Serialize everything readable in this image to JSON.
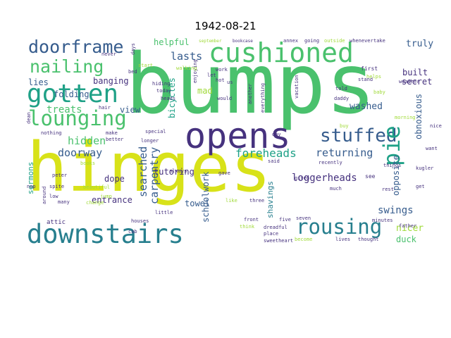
{
  "title": "1942-08-21",
  "colors": {
    "yellow": "#d8e219",
    "lime": "#a0da39",
    "green": "#4ac16d",
    "teal_green": "#1fa187",
    "teal": "#277f8e",
    "blue": "#365c8d",
    "indigo": "#46327e",
    "purple": "#440154"
  },
  "words": [
    {
      "text": "hinges",
      "color": "#d8e219"
    },
    {
      "text": "bumps",
      "color": "#4ac16d"
    },
    {
      "text": "opens",
      "color": "#46327e"
    },
    {
      "text": "cushioned",
      "color": "#4ac16d"
    },
    {
      "text": "gotten",
      "color": "#1fa187"
    },
    {
      "text": "downstairs",
      "color": "#277f8e"
    },
    {
      "text": "lounging",
      "color": "#4ac16d"
    },
    {
      "text": "doorframe",
      "color": "#365c8d"
    },
    {
      "text": "nailing",
      "color": "#4ac16d"
    },
    {
      "text": "rousing",
      "color": "#277f8e"
    },
    {
      "text": "stuffed",
      "color": "#365c8d"
    },
    {
      "text": "pie",
      "color": "#1fa187"
    },
    {
      "text": "foreheads",
      "color": "#1fa187"
    },
    {
      "text": "returning",
      "color": "#365c8d"
    },
    {
      "text": "hidden",
      "color": "#4ac16d"
    },
    {
      "text": "doorway",
      "color": "#365c8d"
    },
    {
      "text": "lasts",
      "color": "#365c8d"
    },
    {
      "text": "treats",
      "color": "#4ac16d"
    },
    {
      "text": "searched",
      "color": "#365c8d"
    },
    {
      "text": "carpentry",
      "color": "#365c8d"
    },
    {
      "text": "loggerheads",
      "color": "#46327e"
    },
    {
      "text": "swings",
      "color": "#365c8d"
    },
    {
      "text": "entrance",
      "color": "#46327e"
    },
    {
      "text": "tutoring",
      "color": "#46327e"
    },
    {
      "text": "dope",
      "color": "#46327e"
    },
    {
      "text": "towel",
      "color": "#365c8d"
    },
    {
      "text": "washed",
      "color": "#365c8d"
    },
    {
      "text": "secret",
      "color": "#46327e"
    },
    {
      "text": "built",
      "color": "#46327e"
    },
    {
      "text": "truly",
      "color": "#365c8d"
    },
    {
      "text": "opposite",
      "color": "#365c8d"
    },
    {
      "text": "obnoxious",
      "color": "#365c8d"
    },
    {
      "text": "nicer",
      "color": "#a0da39"
    },
    {
      "text": "duck",
      "color": "#4ac16d"
    },
    {
      "text": "helpful",
      "color": "#4ac16d"
    },
    {
      "text": "folding",
      "color": "#365c8d"
    },
    {
      "text": "lies",
      "color": "#365c8d"
    },
    {
      "text": "banging",
      "color": "#46327e"
    },
    {
      "text": "view",
      "color": "#365c8d"
    },
    {
      "text": "mad",
      "color": "#a0da39"
    },
    {
      "text": "bicycles",
      "color": "#1fa187"
    },
    {
      "text": "schoolwork",
      "color": "#365c8d"
    },
    {
      "text": "shavings",
      "color": "#277f8e"
    },
    {
      "text": "sermons",
      "color": "#1fa187"
    },
    {
      "text": "attic",
      "color": "#46327e"
    },
    {
      "text": "lives",
      "color": "#46327e"
    },
    {
      "text": "thought",
      "color": "#46327e"
    },
    {
      "text": "become",
      "color": "#a0da39"
    },
    {
      "text": "sweetheart",
      "color": "#46327e"
    },
    {
      "text": "dreadful",
      "color": "#46327e"
    },
    {
      "text": "place",
      "color": "#46327e"
    },
    {
      "text": "front",
      "color": "#46327e"
    },
    {
      "text": "think",
      "color": "#a0da39"
    },
    {
      "text": "five",
      "color": "#46327e"
    },
    {
      "text": "seven",
      "color": "#46327e"
    },
    {
      "text": "minutes",
      "color": "#46327e"
    },
    {
      "text": "father",
      "color": "#46327e"
    },
    {
      "text": "houses",
      "color": "#46327e"
    },
    {
      "text": "little",
      "color": "#46327e"
    },
    {
      "text": "always",
      "color": "#46327e"
    },
    {
      "text": "gave",
      "color": "#46327e"
    },
    {
      "text": "said",
      "color": "#46327e"
    },
    {
      "text": "recently",
      "color": "#46327e"
    },
    {
      "text": "given",
      "color": "#46327e"
    },
    {
      "text": "see",
      "color": "#46327e"
    },
    {
      "text": "much",
      "color": "#46327e"
    },
    {
      "text": "rest",
      "color": "#46327e"
    },
    {
      "text": "get",
      "color": "#46327e"
    },
    {
      "text": "want",
      "color": "#46327e"
    },
    {
      "text": "kugler",
      "color": "#46327e"
    },
    {
      "text": "things",
      "color": "#46327e"
    },
    {
      "text": "special",
      "color": "#46327e"
    },
    {
      "text": "longer",
      "color": "#46327e"
    },
    {
      "text": "better",
      "color": "#46327e"
    },
    {
      "text": "make",
      "color": "#46327e"
    },
    {
      "text": "nothing",
      "color": "#46327e"
    },
    {
      "text": "books",
      "color": "#a0da39"
    },
    {
      "text": "peter",
      "color": "#46327e"
    },
    {
      "text": "spite",
      "color": "#46327e"
    },
    {
      "text": "nap",
      "color": "#46327e"
    },
    {
      "text": "low",
      "color": "#46327e"
    },
    {
      "text": "many",
      "color": "#46327e"
    },
    {
      "text": "around",
      "color": "#46327e"
    },
    {
      "text": "beautiful",
      "color": "#a0da39"
    },
    {
      "text": "jump",
      "color": "#a0da39"
    },
    {
      "text": "change",
      "color": "#a0da39"
    },
    {
      "text": "three",
      "color": "#46327e"
    },
    {
      "text": "september",
      "color": "#a0da39"
    },
    {
      "text": "bookcase",
      "color": "#46327e"
    },
    {
      "text": "annex",
      "color": "#46327e"
    },
    {
      "text": "going",
      "color": "#46327e"
    },
    {
      "text": "outside",
      "color": "#a0da39"
    },
    {
      "text": "whenever",
      "color": "#46327e"
    },
    {
      "text": "take",
      "color": "#46327e"
    },
    {
      "text": "first",
      "color": "#46327e"
    },
    {
      "text": "stand",
      "color": "#46327e"
    },
    {
      "text": "weather",
      "color": "#46327e"
    },
    {
      "text": "helps",
      "color": "#a0da39"
    },
    {
      "text": "told",
      "color": "#46327e"
    },
    {
      "text": "daddy",
      "color": "#46327e"
    },
    {
      "text": "baby",
      "color": "#a0da39"
    },
    {
      "text": "buy",
      "color": "#a0da39"
    },
    {
      "text": "morning",
      "color": "#a0da39"
    },
    {
      "text": "nice",
      "color": "#46327e"
    },
    {
      "text": "day",
      "color": "#46327e"
    },
    {
      "text": "hot",
      "color": "#46327e"
    },
    {
      "text": "us",
      "color": "#46327e"
    },
    {
      "text": "let",
      "color": "#46327e"
    },
    {
      "text": "work",
      "color": "#46327e"
    },
    {
      "text": "would",
      "color": "#46327e"
    },
    {
      "text": "heads",
      "color": "#46327e"
    },
    {
      "text": "hiding",
      "color": "#46327e"
    },
    {
      "text": "today",
      "color": "#46327e"
    },
    {
      "text": "another",
      "color": "#46327e"
    },
    {
      "text": "everything",
      "color": "#46327e"
    },
    {
      "text": "vacation",
      "color": "#46327e"
    },
    {
      "text": "never",
      "color": "#46327e"
    },
    {
      "text": "days",
      "color": "#46327e"
    },
    {
      "text": "bed",
      "color": "#46327e"
    },
    {
      "text": "start",
      "color": "#a0da39"
    },
    {
      "text": "hair",
      "color": "#46327e"
    },
    {
      "text": "enjoying",
      "color": "#46327e"
    },
    {
      "text": "walking",
      "color": "#a0da39"
    },
    {
      "text": "dean",
      "color": "#46327e"
    },
    {
      "text": "cab",
      "color": "#46327e"
    },
    {
      "text": "like",
      "color": "#a0da39"
    }
  ]
}
